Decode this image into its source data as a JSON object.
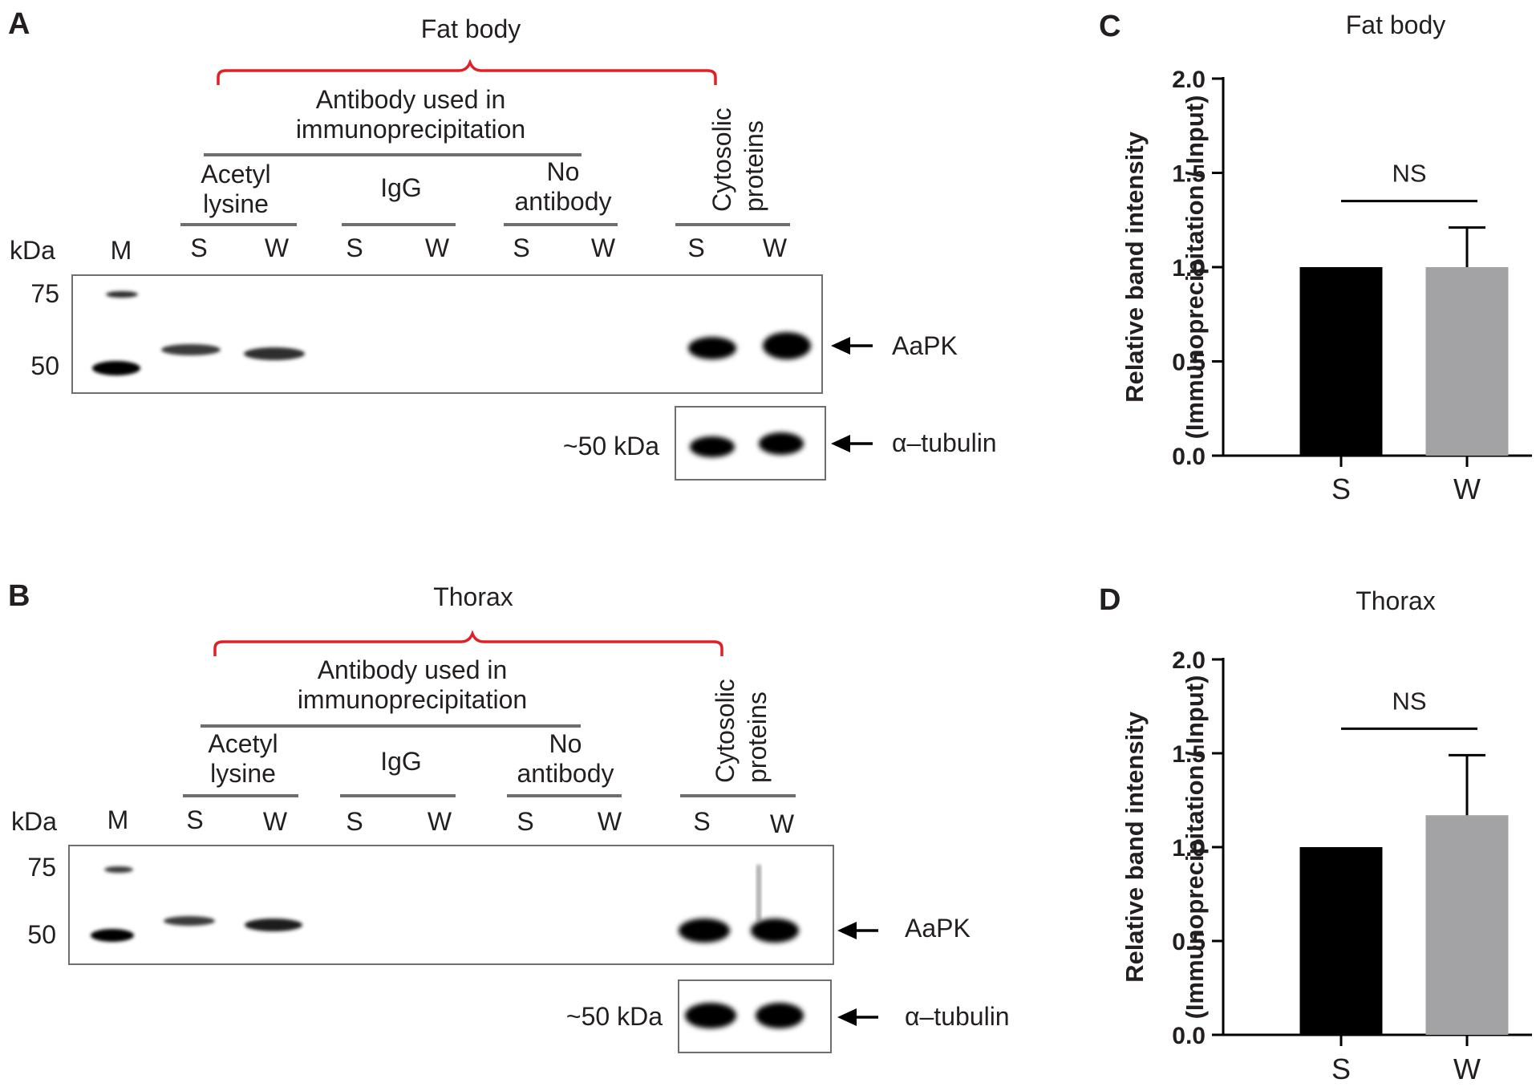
{
  "panels": {
    "A": {
      "letter": "A",
      "tissue": "Fat body",
      "antibody_header": [
        "Antibody used in",
        "immunoprecipitation"
      ],
      "groups": {
        "acetyl": [
          "Acetyl",
          "lysine"
        ],
        "igg": "IgG",
        "noab": [
          "No",
          "antibody"
        ],
        "cyto": [
          "Cytosolic",
          "proteins"
        ]
      },
      "kda_label": "kDa",
      "marker_label": "M",
      "lanes": [
        "S",
        "W",
        "S",
        "W",
        "S",
        "W",
        "S",
        "W"
      ],
      "markers": [
        "75",
        "50"
      ],
      "band_label": "AaPK",
      "tubulin_size": "~50 kDa",
      "tubulin_label": "α–tubulin"
    },
    "B": {
      "letter": "B",
      "tissue": "Thorax",
      "antibody_header": [
        "Antibody used in",
        "immunoprecipitation"
      ],
      "groups": {
        "acetyl": [
          "Acetyl",
          "lysine"
        ],
        "igg": "IgG",
        "noab": [
          "No",
          "antibody"
        ],
        "cyto": [
          "Cytosolic",
          "proteins"
        ]
      },
      "kda_label": "kDa",
      "marker_label": "M",
      "lanes": [
        "S",
        "W",
        "S",
        "W",
        "S",
        "W",
        "S",
        "W"
      ],
      "markers": [
        "75",
        "50"
      ],
      "band_label": "AaPK",
      "tubulin_size": "~50 kDa",
      "tubulin_label": "α–tubulin"
    }
  },
  "chart_data": [
    {
      "panel": "C",
      "type": "bar",
      "title": "Fat body",
      "ylabel": [
        "Relative band intensity",
        "(Immunoprecipitation / Input)"
      ],
      "categories": [
        "S",
        "W"
      ],
      "values": [
        1.0,
        1.0
      ],
      "errors": [
        0,
        0.21
      ],
      "colors": [
        "#000000",
        "#a3a3a6"
      ],
      "ylim": [
        0,
        2.0
      ],
      "yticks": [
        "0.0",
        "0.5",
        "1.0",
        "1.5",
        "2.0"
      ],
      "annotation": "NS",
      "grid": false
    },
    {
      "panel": "D",
      "type": "bar",
      "title": "Thorax",
      "ylabel": [
        "Relative band intensity",
        "(Immunoprecipitation / Input)"
      ],
      "categories": [
        "S",
        "W"
      ],
      "values": [
        1.0,
        1.17
      ],
      "errors": [
        0,
        0.32
      ],
      "colors": [
        "#000000",
        "#a3a3a6"
      ],
      "ylim": [
        0,
        2.0
      ],
      "yticks": [
        "0.0",
        "0.5",
        "1.0",
        "1.5",
        "2.0"
      ],
      "annotation": "NS",
      "grid": false
    }
  ]
}
